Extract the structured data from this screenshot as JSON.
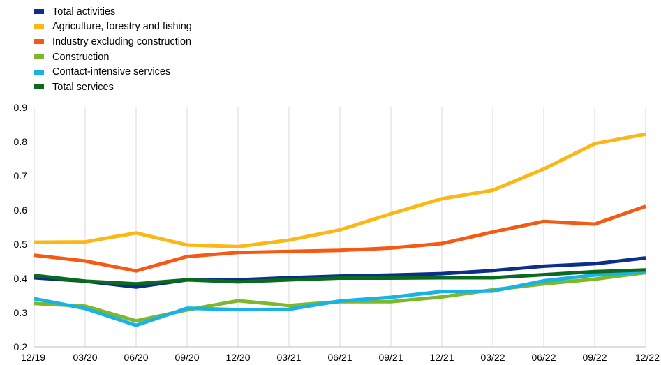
{
  "chart_data": {
    "type": "line",
    "categories": [
      "12/19",
      "03/20",
      "06/20",
      "09/20",
      "12/20",
      "03/21",
      "06/21",
      "09/21",
      "12/21",
      "03/22",
      "06/22",
      "09/22",
      "12/22"
    ],
    "ylim": [
      0.2,
      0.9
    ],
    "yticks": [
      "0.2",
      "0.3",
      "0.4",
      "0.5",
      "0.6",
      "0.7",
      "0.8",
      "0.9"
    ],
    "grid": "vertical",
    "legend_position": "top-left",
    "series": [
      {
        "name": "Total activities",
        "color": "#0b2f8a",
        "values": [
          0.402,
          0.392,
          0.375,
          0.396,
          0.396,
          0.402,
          0.407,
          0.41,
          0.414,
          0.423,
          0.436,
          0.443,
          0.46
        ]
      },
      {
        "name": "Agriculture, forestry and fishing",
        "color": "#fbb714",
        "values": [
          0.506,
          0.507,
          0.533,
          0.498,
          0.493,
          0.512,
          0.542,
          0.589,
          0.633,
          0.658,
          0.72,
          0.794,
          0.822
        ]
      },
      {
        "name": "Industry excluding construction",
        "color": "#f55a14",
        "values": [
          0.468,
          0.451,
          0.422,
          0.464,
          0.476,
          0.479,
          0.482,
          0.489,
          0.502,
          0.536,
          0.567,
          0.559,
          0.611
        ]
      },
      {
        "name": "Construction",
        "color": "#7cb827",
        "values": [
          0.327,
          0.319,
          0.276,
          0.308,
          0.335,
          0.321,
          0.332,
          0.332,
          0.346,
          0.367,
          0.384,
          0.398,
          0.417
        ]
      },
      {
        "name": "Contact-intensive services",
        "color": "#18b2e6",
        "values": [
          0.341,
          0.312,
          0.263,
          0.313,
          0.309,
          0.31,
          0.334,
          0.345,
          0.362,
          0.363,
          0.393,
          0.41,
          0.419
        ]
      },
      {
        "name": "Total services",
        "color": "#0a6b20",
        "values": [
          0.409,
          0.392,
          0.384,
          0.396,
          0.39,
          0.396,
          0.401,
          0.401,
          0.402,
          0.402,
          0.411,
          0.42,
          0.425
        ]
      }
    ]
  }
}
